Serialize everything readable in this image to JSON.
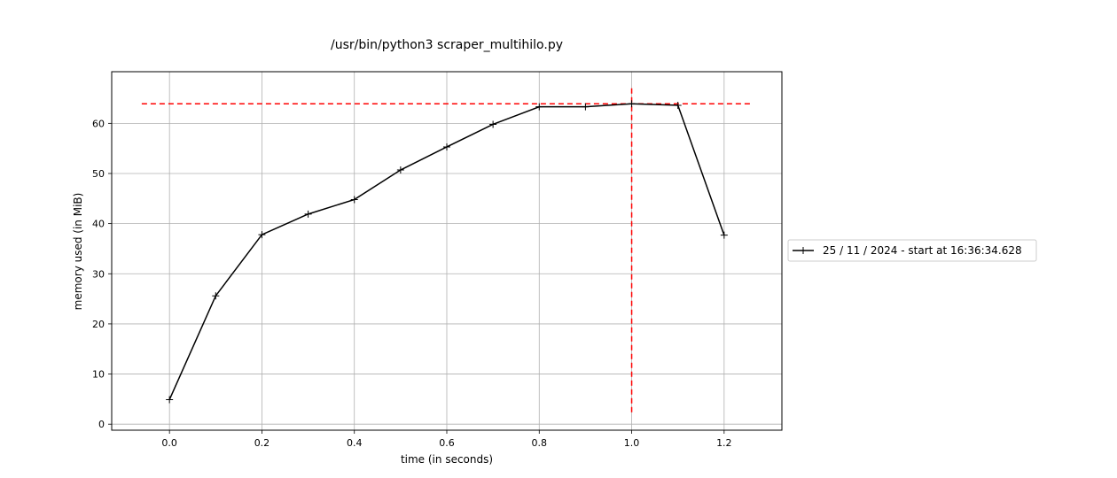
{
  "chart_data": {
    "type": "line",
    "title": "/usr/bin/python3 scraper_multihilo.py",
    "xlabel": "time (in seconds)",
    "ylabel": "memory used (in MiB)",
    "xlim": [
      -0.125,
      1.325
    ],
    "ylim": [
      -1.2,
      70.3
    ],
    "xticks": [
      0.0,
      0.2,
      0.4,
      0.6,
      0.8,
      1.0,
      1.2
    ],
    "xtick_labels": [
      "0.0",
      "0.2",
      "0.4",
      "0.6",
      "0.8",
      "1.0",
      "1.2"
    ],
    "yticks": [
      0,
      10,
      20,
      30,
      40,
      50,
      60
    ],
    "ytick_labels": [
      "0",
      "10",
      "20",
      "30",
      "40",
      "50",
      "60"
    ],
    "grid": true,
    "legend_position": "outside right",
    "series": [
      {
        "name": "25 / 11 / 2024 - start at 16:36:34.628",
        "color": "#000000",
        "marker": "+",
        "x": [
          0.0,
          0.1,
          0.2,
          0.3,
          0.4,
          0.5,
          0.6,
          0.7,
          0.8,
          0.9,
          1.0,
          1.1,
          1.2
        ],
        "y": [
          4.9,
          25.6,
          37.8,
          41.9,
          44.8,
          50.7,
          55.3,
          59.8,
          63.3,
          63.3,
          63.9,
          63.6,
          37.7
        ]
      }
    ],
    "annotations": [
      {
        "kind": "hline",
        "y": 63.9,
        "x_from": -0.06,
        "x_to": 1.26,
        "color": "#ff0000",
        "style": "dashed"
      },
      {
        "kind": "vline",
        "x": 1.0,
        "y_from": 2.0,
        "y_to": 67.0,
        "color": "#ff0000",
        "style": "dashed"
      }
    ]
  }
}
